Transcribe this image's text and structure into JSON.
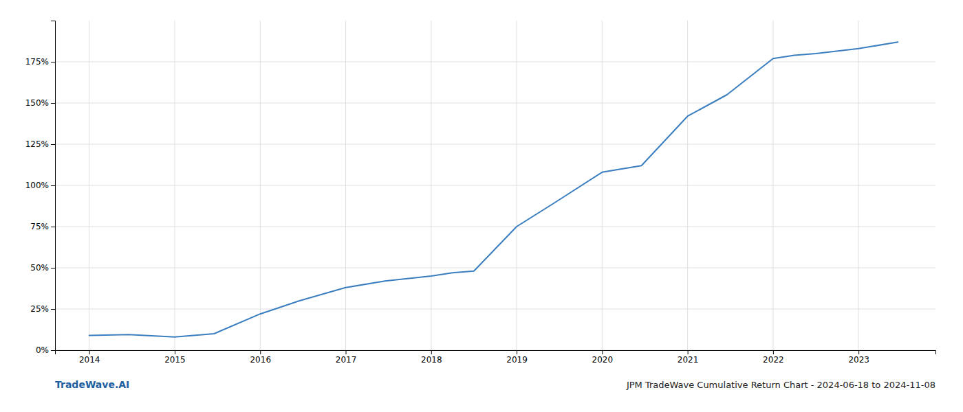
{
  "chart_data": {
    "type": "line",
    "title": "JPM TradeWave Cumulative Return Chart - 2024-06-18 to 2024-11-08",
    "annotations": [
      "TradeWave.AI"
    ],
    "x": [
      2014,
      2014.46,
      2015,
      2015.46,
      2016,
      2016.46,
      2017,
      2017.46,
      2018,
      2018.25,
      2018.5,
      2019,
      2019.46,
      2020,
      2020.46,
      2021,
      2021.46,
      2022,
      2022.25,
      2022.5,
      2023,
      2023.46
    ],
    "values": [
      9,
      9.5,
      8,
      10,
      22,
      30,
      38,
      42,
      45,
      47,
      48,
      75,
      90,
      108,
      112,
      142,
      155,
      177,
      179,
      180,
      183,
      187
    ],
    "color": "#3a7ebf",
    "xlim": [
      2013.6,
      2023.9
    ],
    "ylim": [
      0,
      200
    ],
    "xticks": [
      2014,
      2015,
      2016,
      2017,
      2018,
      2019,
      2020,
      2021,
      2022,
      2023
    ],
    "yticks": [
      {
        "value": 0,
        "label": "0%"
      },
      {
        "value": 25,
        "label": "25%"
      },
      {
        "value": 50,
        "label": "50%"
      },
      {
        "value": 75,
        "label": "75%"
      },
      {
        "value": 100,
        "label": "100%"
      },
      {
        "value": 125,
        "label": "125%"
      },
      {
        "value": 150,
        "label": "150%"
      },
      {
        "value": 175,
        "label": "175%"
      }
    ],
    "grid": true
  }
}
